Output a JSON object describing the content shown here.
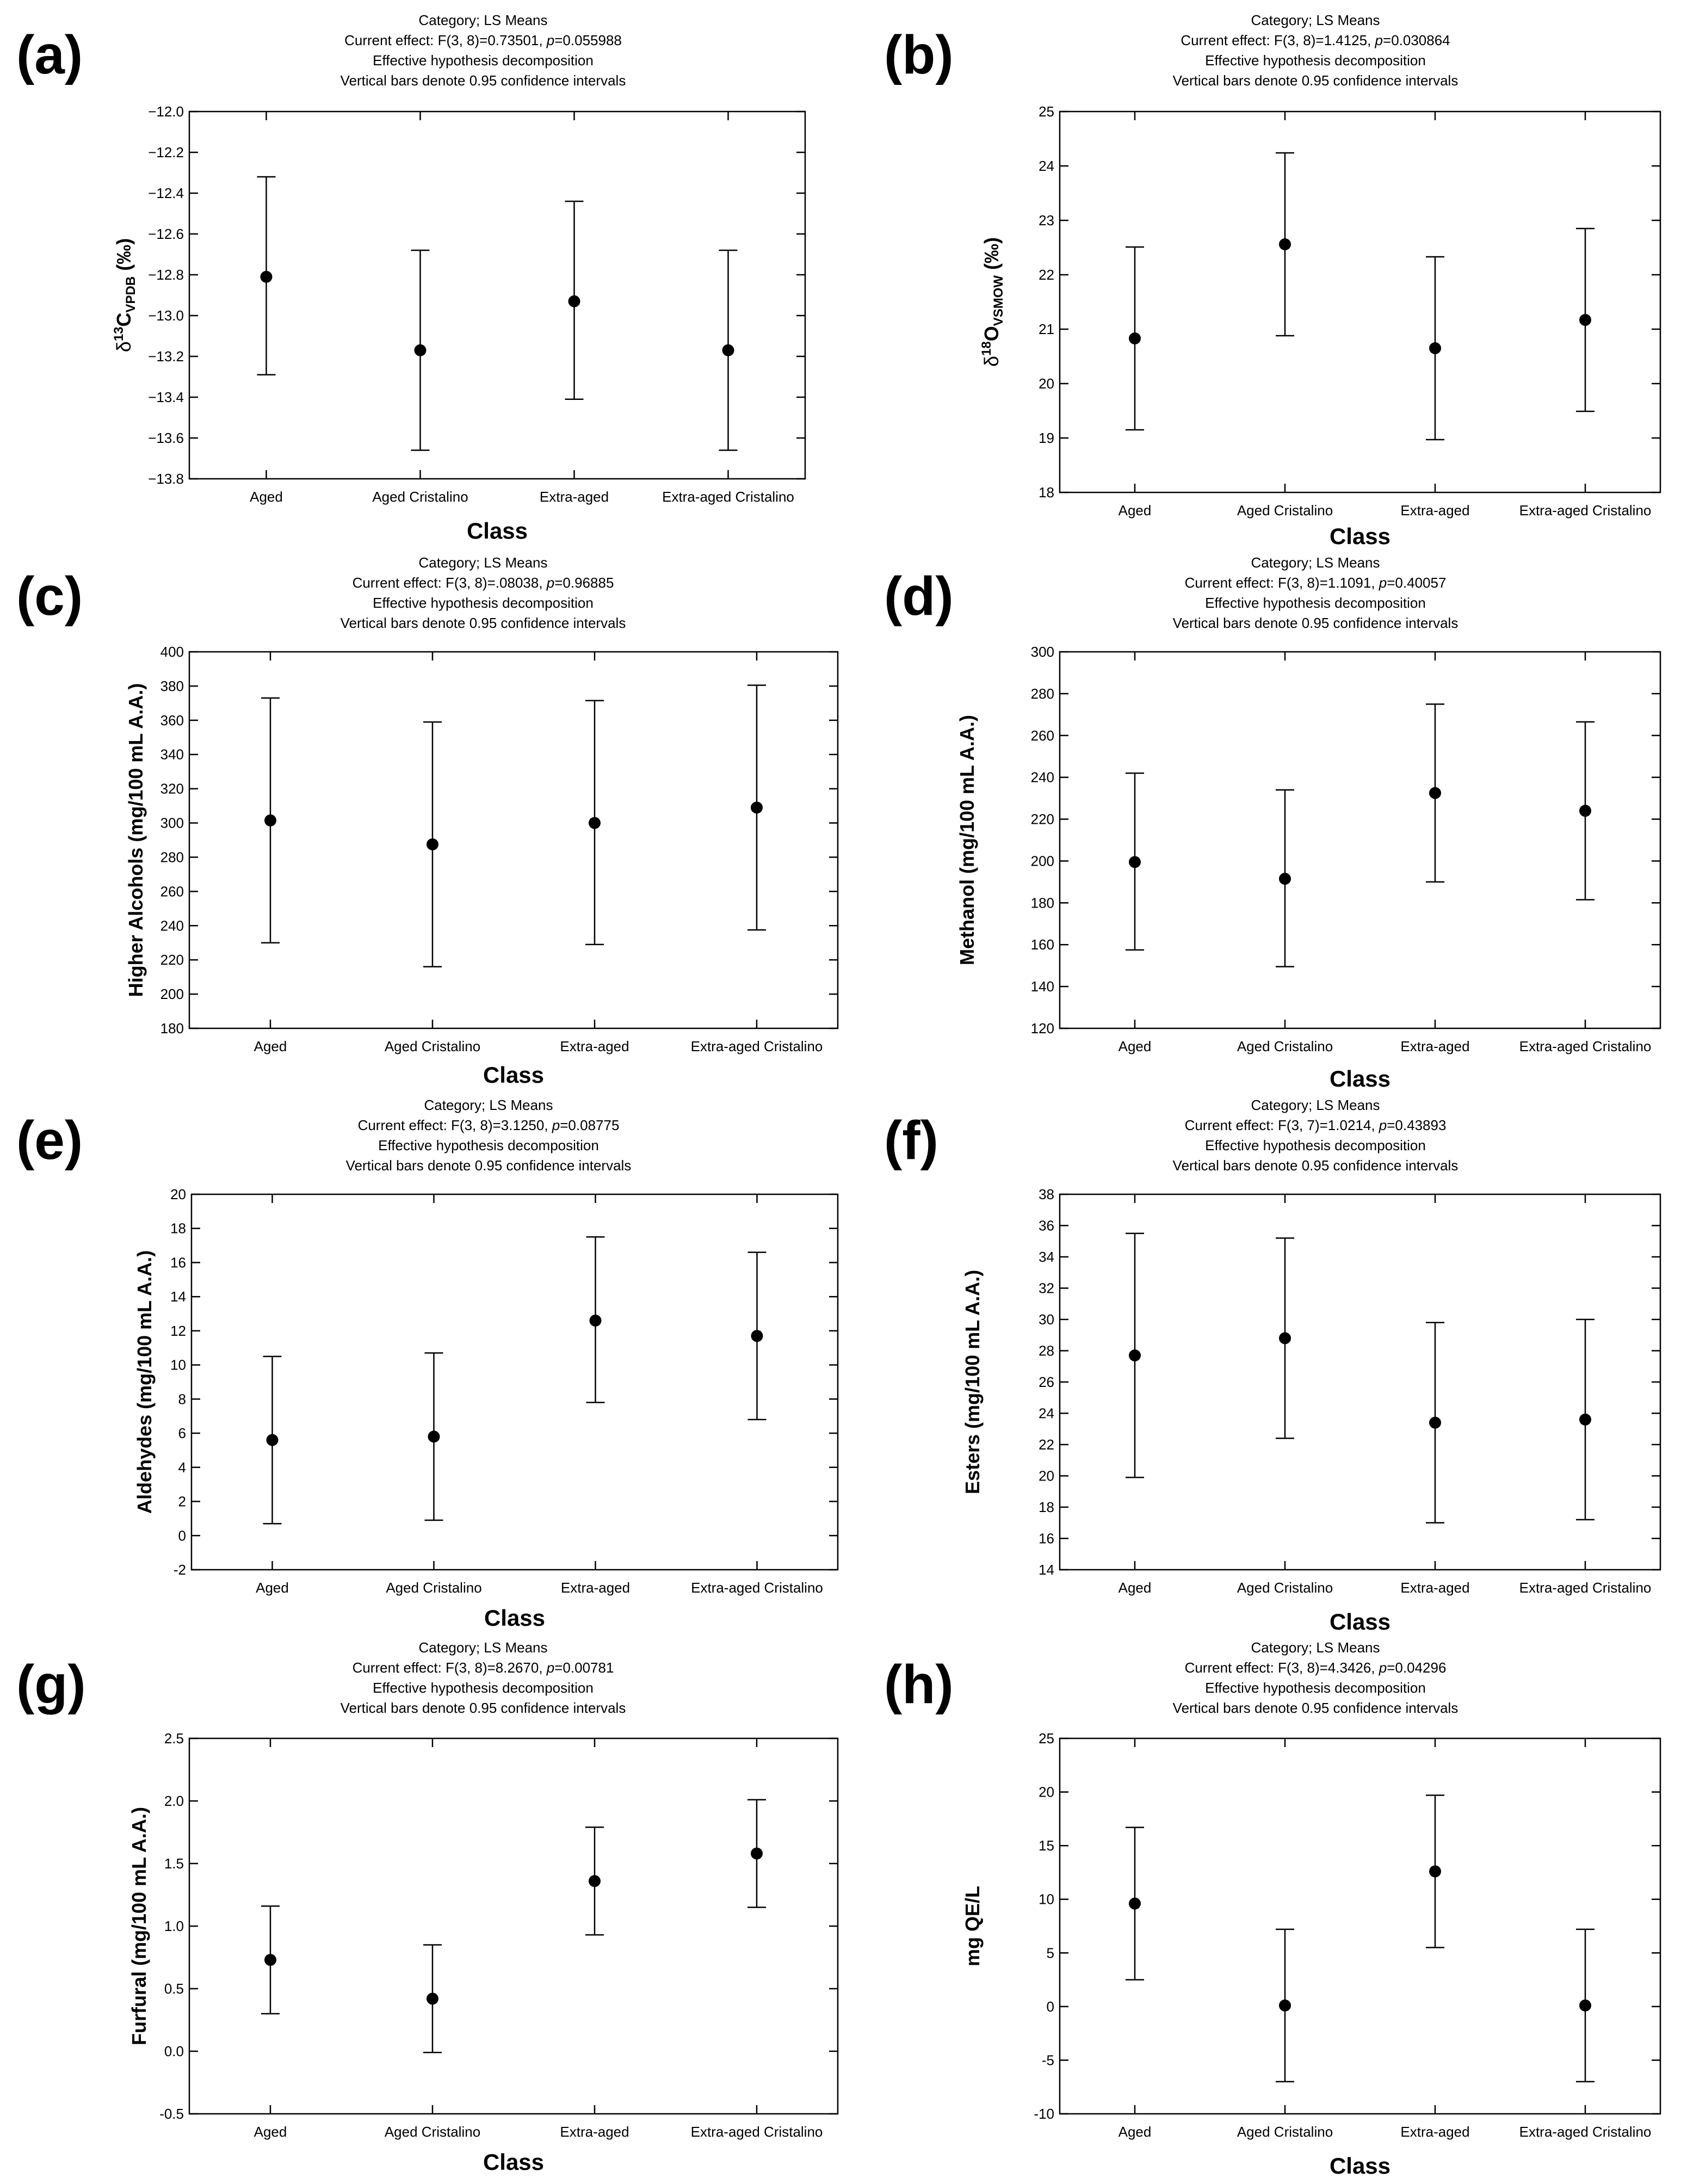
{
  "chart_data": [
    {
      "type": "scatter",
      "panel": "(a)",
      "header": [
        "Category; LS Means",
        "Vertical bars denote 0.95 confidence intervals"
      ],
      "effect_prefix": "Current effect: F(3, 8)=0.73501,",
      "p_value": "=0.055988",
      "decomposition": "Effective hypothesis decomposition",
      "xlabel": "Class",
      "ylabel": "δ13CVPDB (‰)",
      "ylabel_parts": [
        "δ",
        "13",
        "C",
        "VPDB",
        " (‰)"
      ],
      "categories": [
        "Aged",
        "Aged Cristalino",
        "Extra-aged",
        "Extra-aged Cristalino"
      ],
      "ylim": [
        -13.8,
        -12.0
      ],
      "yticks": [
        -12.0,
        -12.2,
        -12.4,
        -12.6,
        -12.8,
        -13.0,
        -13.2,
        -13.4,
        -13.6,
        -13.8
      ],
      "tick_labels": [
        "−12.0",
        "−12.2",
        "−12.4",
        "−12.6",
        "−12.8",
        "−13.0",
        "−13.2",
        "−13.4",
        "−13.6",
        "−13.8"
      ],
      "means": [
        -12.81,
        -13.17,
        -12.93,
        -13.17
      ],
      "ci_lower": [
        -13.29,
        -13.66,
        -13.41,
        -13.66
      ],
      "ci_upper": [
        -12.32,
        -12.68,
        -12.44,
        -12.68
      ]
    },
    {
      "type": "scatter",
      "panel": "(b)",
      "header": [
        "Category; LS Means",
        "Vertical bars denote 0.95 confidence intervals"
      ],
      "effect_prefix": "Current effect: F(3, 8)=1.4125,",
      "p_value": "=0.030864",
      "decomposition": "Effective hypothesis decomposition",
      "xlabel": "Class",
      "ylabel": "δ18OVSMOW (‰)",
      "ylabel_parts": [
        "δ",
        "18",
        "O",
        "VSMOW",
        " (‰)"
      ],
      "categories": [
        "Aged",
        "Aged Cristalino",
        "Extra-aged",
        "Extra-aged Cristalino"
      ],
      "ylim": [
        18,
        25
      ],
      "yticks": [
        18,
        19,
        20,
        21,
        22,
        23,
        24,
        25
      ],
      "tick_labels": [
        "18",
        "19",
        "20",
        "21",
        "22",
        "23",
        "24",
        "25"
      ],
      "means": [
        20.83,
        22.56,
        20.65,
        21.17
      ],
      "ci_lower": [
        19.15,
        20.88,
        18.97,
        19.49
      ],
      "ci_upper": [
        22.51,
        24.24,
        22.33,
        22.85
      ]
    },
    {
      "type": "scatter",
      "panel": "(c)",
      "header": [
        "Category; LS Means",
        "Vertical bars denote 0.95 confidence intervals"
      ],
      "effect_prefix": "Current effect: F(3, 8)=.08038,",
      "p_value": "=0.96885",
      "decomposition": "Effective hypothesis decomposition",
      "xlabel": "Class",
      "ylabel": "Higher Alcohols (mg/100 mL A.A.)",
      "categories": [
        "Aged",
        "Aged Cristalino",
        "Extra-aged",
        "Extra-aged Cristalino"
      ],
      "ylim": [
        180,
        400
      ],
      "yticks": [
        180,
        200,
        220,
        240,
        260,
        280,
        300,
        320,
        340,
        360,
        380,
        400
      ],
      "tick_labels": [
        "180",
        "200",
        "220",
        "240",
        "260",
        "280",
        "300",
        "320",
        "340",
        "360",
        "380",
        "400"
      ],
      "means": [
        301.5,
        287.5,
        300,
        309
      ],
      "ci_lower": [
        230,
        216,
        229,
        237.5
      ],
      "ci_upper": [
        373,
        359,
        371.5,
        380.5
      ]
    },
    {
      "type": "scatter",
      "panel": "(d)",
      "header": [
        "Category; LS Means",
        "Vertical bars denote 0.95 confidence intervals"
      ],
      "effect_prefix": "Current effect: F(3, 8)=1.1091,",
      "p_value": "=0.40057",
      "decomposition": "Effective hypothesis decomposition",
      "xlabel": "Class",
      "ylabel": "Methanol (mg/100 mL A.A.)",
      "categories": [
        "Aged",
        "Aged Cristalino",
        "Extra-aged",
        "Extra-aged Cristalino"
      ],
      "ylim": [
        120,
        300
      ],
      "yticks": [
        120,
        140,
        160,
        180,
        200,
        220,
        240,
        260,
        280,
        300
      ],
      "tick_labels": [
        "120",
        "140",
        "160",
        "180",
        "200",
        "220",
        "240",
        "260",
        "280",
        "300"
      ],
      "means": [
        199.5,
        191.5,
        232.5,
        224
      ],
      "ci_lower": [
        157.5,
        149.5,
        190,
        181.5
      ],
      "ci_upper": [
        242,
        234,
        275,
        266.5
      ]
    },
    {
      "type": "scatter",
      "panel": "(e)",
      "header": [
        "Category; LS Means",
        "Vertical bars denote 0.95 confidence intervals"
      ],
      "effect_prefix": "Current effect: F(3, 8)=3.1250,",
      "p_value": "=0.08775",
      "decomposition": "Effective hypothesis decomposition",
      "xlabel": "Class",
      "ylabel": "Aldehydes (mg/100 mL A.A.)",
      "categories": [
        "Aged",
        "Aged Cristalino",
        "Extra-aged",
        "Extra-aged Cristalino"
      ],
      "ylim": [
        -2,
        20
      ],
      "yticks": [
        -2,
        0,
        2,
        4,
        6,
        8,
        10,
        12,
        14,
        16,
        18,
        20
      ],
      "tick_labels": [
        "-2",
        "0",
        "2",
        "4",
        "6",
        "8",
        "10",
        "12",
        "14",
        "16",
        "18",
        "20"
      ],
      "means": [
        5.6,
        5.8,
        12.6,
        11.7
      ],
      "ci_lower": [
        0.7,
        0.9,
        7.8,
        6.8
      ],
      "ci_upper": [
        10.5,
        10.7,
        17.5,
        16.6
      ]
    },
    {
      "type": "scatter",
      "panel": "(f)",
      "header": [
        "Category; LS Means",
        "Vertical bars denote 0.95 confidence intervals"
      ],
      "effect_prefix": "Current effect: F(3, 7)=1.0214,",
      "p_value": "=0.43893",
      "decomposition": "Effective hypothesis decomposition",
      "xlabel": "Class",
      "ylabel": "Esters (mg/100 mL A.A.)",
      "categories": [
        "Aged",
        "Aged Cristalino",
        "Extra-aged",
        "Extra-aged Cristalino"
      ],
      "ylim": [
        14,
        38
      ],
      "yticks": [
        14,
        16,
        18,
        20,
        22,
        24,
        26,
        28,
        30,
        32,
        34,
        36,
        38
      ],
      "tick_labels": [
        "14",
        "16",
        "18",
        "20",
        "22",
        "24",
        "26",
        "28",
        "30",
        "32",
        "34",
        "36",
        "38"
      ],
      "means": [
        27.7,
        28.8,
        23.4,
        23.6
      ],
      "ci_lower": [
        19.9,
        22.4,
        17.0,
        17.2
      ],
      "ci_upper": [
        35.5,
        35.2,
        29.8,
        30.0
      ]
    },
    {
      "type": "scatter",
      "panel": "(g)",
      "header": [
        "Category; LS Means",
        "Vertical bars denote 0.95 confidence intervals"
      ],
      "effect_prefix": "Current effect: F(3, 8)=8.2670,",
      "p_value": "=0.00781",
      "decomposition": "Effective hypothesis decomposition",
      "xlabel": "Class",
      "ylabel": "Furfural (mg/100 mL A.A.)",
      "categories": [
        "Aged",
        "Aged Cristalino",
        "Extra-aged",
        "Extra-aged Cristalino"
      ],
      "ylim": [
        -0.5,
        2.5
      ],
      "yticks": [
        -0.5,
        0.0,
        0.5,
        1.0,
        1.5,
        2.0,
        2.5
      ],
      "tick_labels": [
        "-0.5",
        "0.0",
        "0.5",
        "1.0",
        "1.5",
        "2.0",
        "2.5"
      ],
      "means": [
        0.73,
        0.42,
        1.36,
        1.58
      ],
      "ci_lower": [
        0.3,
        -0.01,
        0.93,
        1.15
      ],
      "ci_upper": [
        1.16,
        0.85,
        1.79,
        2.01
      ]
    },
    {
      "type": "scatter",
      "panel": "(h)",
      "header": [
        "Category; LS Means",
        "Vertical bars denote 0.95 confidence intervals"
      ],
      "effect_prefix": "Current effect: F(3, 8)=4.3426,",
      "p_value": "=0.04296",
      "decomposition": "Effective hypothesis decomposition",
      "xlabel": "Class",
      "ylabel": "mg QE/L",
      "categories": [
        "Aged",
        "Aged Cristalino",
        "Extra-aged",
        "Extra-aged Cristalino"
      ],
      "ylim": [
        -10,
        25
      ],
      "yticks": [
        -10,
        -5,
        0,
        5,
        10,
        15,
        20,
        25
      ],
      "tick_labels": [
        "-10",
        "-5",
        "0",
        "5",
        "10",
        "15",
        "20",
        "25"
      ],
      "means": [
        9.6,
        0.1,
        12.6,
        0.1
      ],
      "ci_lower": [
        2.5,
        -7.0,
        5.5,
        -7.0
      ],
      "ci_upper": [
        16.7,
        7.2,
        19.7,
        7.2
      ]
    }
  ]
}
